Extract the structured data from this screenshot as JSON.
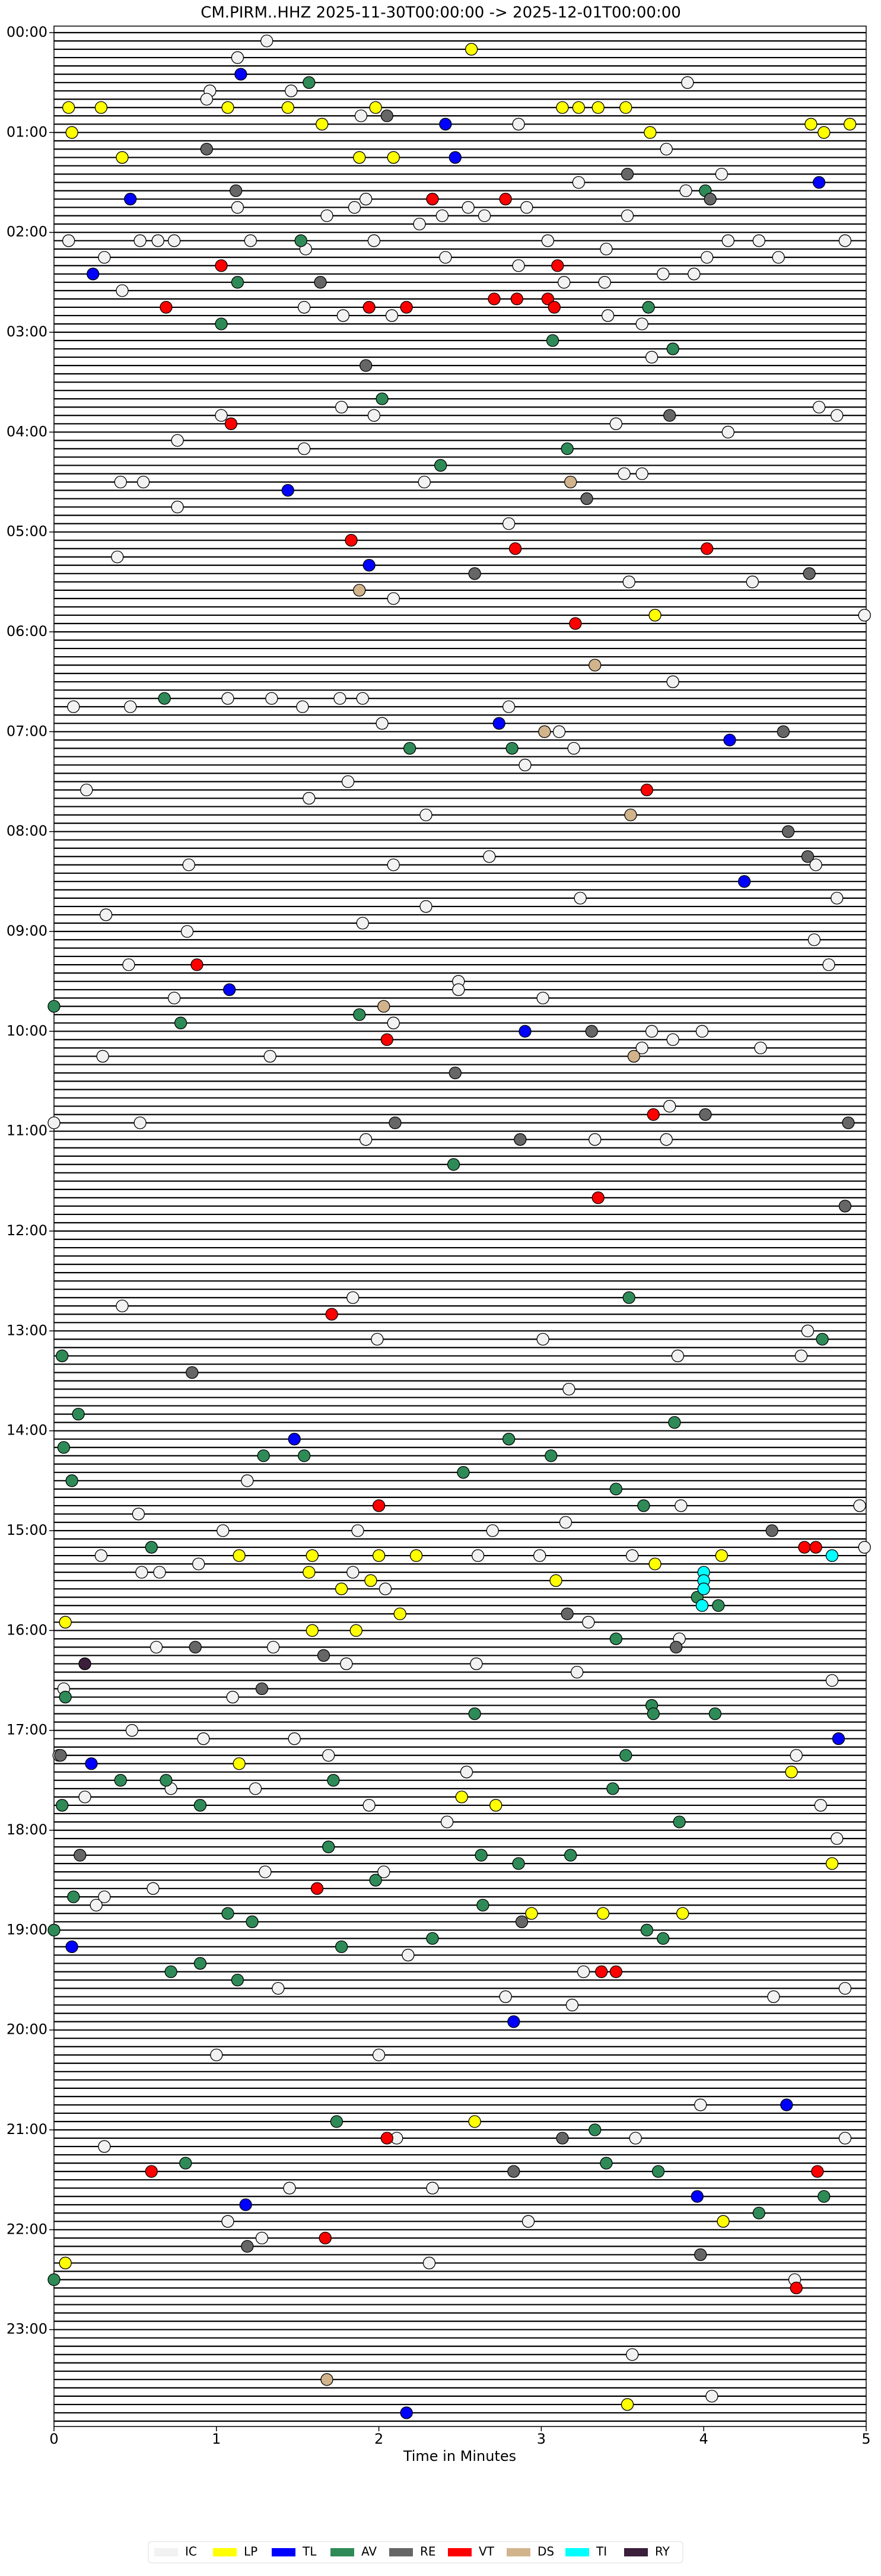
{
  "chart_data": {
    "type": "scatter",
    "title": "CM.PIRM..HHZ  2025-11-30T00:00:00 -> 2025-12-01T00:00:00",
    "xlabel": "Time in Minutes",
    "xlim": [
      0,
      5
    ],
    "xticks": [
      0,
      1,
      2,
      3,
      4,
      5
    ],
    "ylim": [
      0,
      1440
    ],
    "y_inverted": true,
    "yticks": [
      {
        "value": 0,
        "label": "00:00"
      },
      {
        "value": 60,
        "label": "01:00"
      },
      {
        "value": 120,
        "label": "02:00"
      },
      {
        "value": 180,
        "label": "03:00"
      },
      {
        "value": 240,
        "label": "04:00"
      },
      {
        "value": 300,
        "label": "05:00"
      },
      {
        "value": 360,
        "label": "06:00"
      },
      {
        "value": 420,
        "label": "07:00"
      },
      {
        "value": 480,
        "label": "08:00"
      },
      {
        "value": 540,
        "label": "09:00"
      },
      {
        "value": 600,
        "label": "10:00"
      },
      {
        "value": 660,
        "label": "11:00"
      },
      {
        "value": 720,
        "label": "12:00"
      },
      {
        "value": 780,
        "label": "13:00"
      },
      {
        "value": 840,
        "label": "14:00"
      },
      {
        "value": 900,
        "label": "15:00"
      },
      {
        "value": 960,
        "label": "16:00"
      },
      {
        "value": 1020,
        "label": "17:00"
      },
      {
        "value": 1080,
        "label": "18:00"
      },
      {
        "value": 1140,
        "label": "19:00"
      },
      {
        "value": 1200,
        "label": "20:00"
      },
      {
        "value": 1260,
        "label": "21:00"
      },
      {
        "value": 1320,
        "label": "22:00"
      },
      {
        "value": 1380,
        "label": "23:00"
      }
    ],
    "legend": "lower center",
    "series": [
      {
        "name": "IC",
        "color": "#f2f2f2",
        "x": [
          1.31,
          1.13,
          3.9,
          0.96,
          1.46,
          0.94,
          1.89,
          2.86,
          3.77,
          4.11,
          3.23,
          3.89,
          1.92,
          1.13,
          2.55,
          2.91,
          1.85,
          1.68,
          2.39,
          2.65,
          3.53,
          2.25,
          0.09,
          0.53,
          0.64,
          0.74,
          1.21,
          1.97,
          3.04,
          4.15,
          4.34,
          4.87,
          3.4,
          1.55,
          0.31,
          2.41,
          4.02,
          4.46,
          2.86,
          3.75,
          3.94,
          3.14,
          3.39,
          0.42,
          1.54,
          1.78,
          2.08,
          3.41,
          3.62,
          3.68,
          1.77,
          1.03,
          1.97,
          4.71,
          4.82,
          3.46,
          0.76,
          1.54,
          4.15,
          0.41,
          0.55,
          2.28,
          3.51,
          3.62,
          0.76,
          2.8,
          0.39,
          3.54,
          4.3,
          2.09,
          4.99,
          3.81,
          0.12,
          0.47,
          1.07,
          1.34,
          1.53,
          1.76,
          1.9,
          2.02,
          2.8,
          3.11,
          3.2,
          2.9,
          1.81,
          0.2,
          1.57,
          2.29,
          2.68,
          2.09,
          4.69,
          0.83,
          4.82,
          3.24,
          2.29,
          0.32,
          1.9,
          0.82,
          4.68,
          0.46,
          2.49,
          2.49,
          0.74,
          3.01,
          4.77,
          2.09,
          3.68,
          3.99,
          3.81,
          4.35,
          0.3,
          1.33,
          3.62,
          3.79,
          0,
          0.53,
          1.92,
          3.33,
          3.77,
          1.84,
          0.42,
          4.64,
          1.99,
          3.01,
          3.84,
          4.6,
          3.17,
          1.19,
          0.52,
          3.86,
          3.15,
          4.96,
          1.04,
          1.87,
          2.7,
          4.99,
          0.29,
          2.61,
          2.99,
          3.56,
          0.89,
          0.54,
          0.65,
          1.84,
          2.04,
          3.29,
          3.85,
          0.63,
          1.35,
          1.8,
          2.6,
          3.22,
          4.79,
          0.06,
          1.1,
          0.48,
          0.92,
          1.48,
          0.03,
          1.69,
          4.57,
          2.54,
          0.72,
          1.24,
          0.19,
          1.94,
          4.72,
          2.42,
          4.82,
          1.3,
          2.03,
          0.61,
          0.31,
          0.26,
          2.18,
          3.26,
          1.38,
          2.78,
          3.19,
          4.43,
          4.87,
          1.0,
          2.0,
          3.98,
          2.11,
          3.58,
          4.87,
          0.31,
          1.45,
          2.33,
          1.07,
          2.92,
          1.28,
          2.31,
          4.56,
          3.56,
          4.05
        ],
        "values": [
          5,
          15,
          30,
          35,
          35,
          40,
          50,
          55,
          70,
          85,
          90,
          95,
          100,
          105,
          105,
          105,
          105,
          110,
          110,
          110,
          110,
          115,
          125,
          125,
          125,
          125,
          125,
          125,
          125,
          125,
          125,
          125,
          130,
          130,
          135,
          135,
          135,
          135,
          140,
          145,
          145,
          150,
          150,
          155,
          165,
          170,
          170,
          170,
          175,
          195,
          225,
          230,
          230,
          225,
          230,
          235,
          245,
          250,
          240,
          270,
          270,
          270,
          265,
          265,
          285,
          295,
          315,
          330,
          330,
          340,
          350,
          390,
          405,
          405,
          400,
          400,
          405,
          400,
          400,
          415,
          405,
          420,
          430,
          440,
          450,
          455,
          460,
          470,
          495,
          500,
          500,
          500,
          520,
          520,
          525,
          530,
          535,
          540,
          545,
          560,
          570,
          575,
          580,
          580,
          560,
          595,
          600,
          600,
          605,
          610,
          615,
          615,
          610,
          645,
          655,
          655,
          665,
          665,
          665,
          760,
          765,
          780,
          785,
          785,
          795,
          795,
          815,
          870,
          890,
          885,
          895,
          885,
          900,
          900,
          900,
          910,
          915,
          915,
          915,
          915,
          920,
          925,
          925,
          925,
          935,
          955,
          965,
          970,
          970,
          980,
          980,
          985,
          990,
          995,
          1000,
          1020,
          1025,
          1025,
          1035,
          1035,
          1035,
          1045,
          1055,
          1055,
          1060,
          1065,
          1065,
          1075,
          1085,
          1105,
          1105,
          1115,
          1120,
          1125,
          1155,
          1165,
          1175,
          1180,
          1185,
          1180,
          1175,
          1215,
          1215,
          1245,
          1265,
          1265,
          1265,
          1270,
          1295,
          1295,
          1315,
          1315,
          1325,
          1340,
          1350,
          1395,
          1420
        ]
      },
      {
        "name": "LP",
        "color": "#ffff00",
        "x": [
          2.57,
          0.09,
          0.29,
          1.07,
          1.44,
          1.98,
          3.13,
          3.23,
          3.35,
          3.52,
          1.65,
          4.66,
          4.9,
          0.11,
          3.67,
          4.74,
          0.42,
          1.88,
          2.09,
          3.7,
          1.14,
          1.59,
          2.0,
          2.23,
          4.11,
          3.7,
          1.57,
          1.95,
          3.09,
          1.77,
          2.13,
          0.07,
          1.59,
          1.86,
          1.14,
          4.54,
          2.51,
          2.72,
          4.79,
          2.94,
          3.38,
          3.87,
          2.59,
          4.12,
          0.07,
          3.53
        ],
        "values": [
          10,
          45,
          45,
          45,
          45,
          45,
          45,
          45,
          45,
          45,
          55,
          55,
          55,
          60,
          60,
          60,
          75,
          75,
          75,
          350,
          915,
          915,
          915,
          915,
          915,
          920,
          925,
          930,
          930,
          935,
          950,
          955,
          960,
          960,
          1040,
          1045,
          1060,
          1065,
          1100,
          1130,
          1130,
          1130,
          1255,
          1315,
          1340,
          1425
        ]
      },
      {
        "name": "TL",
        "color": "#0000ff",
        "x": [
          1.15,
          2.41,
          2.47,
          4.71,
          0.47,
          0.24,
          1.44,
          1.94,
          2.74,
          4.16,
          4.25,
          1.08,
          2.9,
          1.48,
          4.83,
          0.23,
          0.11,
          2.83,
          4.51,
          3.96,
          1.18,
          2.17
        ],
        "values": [
          25,
          55,
          75,
          90,
          100,
          145,
          275,
          320,
          415,
          425,
          510,
          575,
          600,
          845,
          1025,
          1040,
          1150,
          1195,
          1245,
          1300,
          1305,
          1430
        ]
      },
      {
        "name": "AV",
        "color": "#2e8b57",
        "x": [
          1.57,
          4.01,
          1.52,
          1.13,
          3.66,
          1.03,
          3.07,
          3.81,
          2.02,
          3.16,
          2.38,
          0.68,
          2.19,
          2.82,
          1.88,
          0,
          0.78,
          2.46,
          3.54,
          4.73,
          0.05,
          0.15,
          3.82,
          0.06,
          2.8,
          1.29,
          1.54,
          3.06,
          0.11,
          3.46,
          2.52,
          3.63,
          0.6,
          3.96,
          4.09,
          3.46,
          0.07,
          3.68,
          3.69,
          4.07,
          2.59,
          3.52,
          0.41,
          0.69,
          1.72,
          3.44,
          0.05,
          0.9,
          3.85,
          1.69,
          2.63,
          3.18,
          2.86,
          1.98,
          0.12,
          2.64,
          1.07,
          1.22,
          3.65,
          3.75,
          0,
          1.77,
          2.33,
          0.9,
          0.72,
          1.13,
          1.74,
          3.33,
          0.81,
          3.4,
          3.72,
          4.74,
          4.34,
          0
        ],
        "values": [
          30,
          95,
          125,
          150,
          165,
          175,
          185,
          190,
          220,
          250,
          260,
          400,
          430,
          430,
          590,
          585,
          595,
          680,
          760,
          785,
          795,
          830,
          835,
          850,
          845,
          855,
          855,
          855,
          870,
          875,
          865,
          885,
          910,
          940,
          945,
          965,
          1000,
          1005,
          1010,
          1010,
          1010,
          1035,
          1050,
          1050,
          1050,
          1055,
          1065,
          1065,
          1075,
          1090,
          1095,
          1095,
          1100,
          1110,
          1120,
          1125,
          1130,
          1135,
          1140,
          1145,
          1140,
          1150,
          1145,
          1160,
          1165,
          1170,
          1255,
          1260,
          1280,
          1280,
          1285,
          1300,
          1310,
          1350
        ]
      },
      {
        "name": "RE",
        "color": "#666666",
        "x": [
          2.05,
          0.94,
          3.53,
          1.12,
          4.04,
          1.64,
          1.92,
          3.79,
          3.28,
          2.59,
          4.65,
          4.49,
          4.52,
          4.64,
          3.31,
          2.47,
          4.01,
          2.1,
          4.89,
          2.87,
          4.87,
          0.85,
          4.42,
          3.16,
          3.83,
          0.87,
          1.66,
          1.28,
          0.04,
          0.16,
          2.88,
          3.13,
          2.83,
          1.19,
          3.98
        ],
        "values": [
          50,
          70,
          85,
          95,
          100,
          150,
          200,
          230,
          280,
          325,
          325,
          420,
          480,
          495,
          600,
          625,
          650,
          655,
          655,
          665,
          705,
          805,
          900,
          950,
          970,
          970,
          975,
          995,
          1035,
          1095,
          1135,
          1265,
          1285,
          1330,
          1335
        ]
      },
      {
        "name": "VT",
        "color": "#ff0000",
        "x": [
          2.33,
          2.78,
          3.1,
          1.03,
          0.69,
          2.71,
          2.85,
          3.04,
          3.08,
          1.94,
          2.17,
          1.09,
          1.83,
          2.84,
          4.02,
          3.21,
          3.65,
          0.88,
          2.05,
          3.69,
          3.35,
          1.71,
          2.0,
          4.62,
          4.69,
          1.62,
          3.37,
          3.46,
          2.05,
          4.7,
          0.6,
          1.67,
          4.57
        ],
        "values": [
          100,
          100,
          140,
          140,
          165,
          160,
          160,
          160,
          165,
          165,
          165,
          235,
          305,
          310,
          310,
          355,
          455,
          560,
          605,
          650,
          700,
          770,
          885,
          910,
          910,
          1115,
          1165,
          1165,
          1265,
          1285,
          1285,
          1325,
          1355
        ]
      },
      {
        "name": "DS",
        "color": "#d2b48c",
        "x": [
          3.18,
          1.88,
          3.33,
          3.02,
          3.55,
          2.03,
          3.57,
          1.68
        ],
        "values": [
          270,
          335,
          380,
          420,
          470,
          585,
          615,
          1410
        ]
      },
      {
        "name": "TI",
        "color": "#00ffff",
        "x": [
          4.79,
          4.0,
          4.0,
          4.0,
          3.99
        ],
        "values": [
          915,
          925,
          930,
          935,
          945
        ]
      },
      {
        "name": "RY",
        "color": "#3b1f3b",
        "x": [
          0.19
        ],
        "values": [
          980
        ]
      }
    ]
  }
}
